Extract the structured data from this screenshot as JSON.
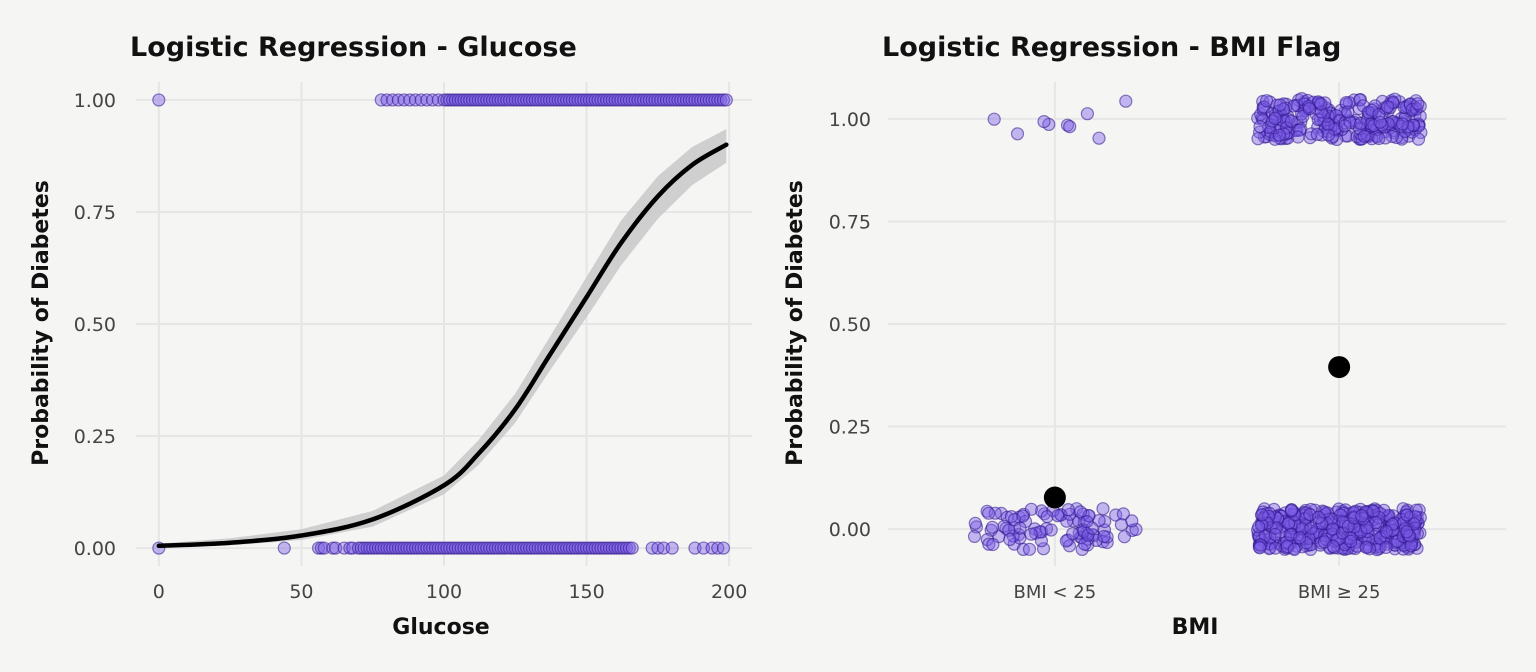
{
  "chart_data": [
    {
      "type": "scatter",
      "title": "Logistic Regression - Glucose",
      "xlabel": "Glucose",
      "ylabel": "Probability of Diabetes",
      "xlim": [
        -8,
        208
      ],
      "ylim": [
        -0.04,
        1.04
      ],
      "xticks": [
        0,
        50,
        100,
        150,
        200
      ],
      "xtick_labels": [
        "0",
        "50",
        "100",
        "150",
        "200"
      ],
      "yticks": [
        0,
        0.25,
        0.5,
        0.75,
        1
      ],
      "ytick_labels": [
        "0.00",
        "0.25",
        "0.50",
        "0.75",
        "1.00"
      ],
      "grid": true,
      "point_color": "#7c5ce6",
      "points_outcome_1": {
        "x": [
          0,
          78,
          80,
          82,
          84,
          86,
          88,
          90,
          92,
          94,
          96,
          98,
          100,
          101,
          102,
          103,
          104,
          105,
          106,
          107,
          108,
          109,
          110,
          111,
          112,
          113,
          114,
          115,
          116,
          117,
          118,
          119,
          120,
          121,
          122,
          123,
          124,
          125,
          126,
          127,
          128,
          129,
          130,
          131,
          132,
          133,
          134,
          135,
          136,
          137,
          138,
          139,
          140,
          141,
          142,
          143,
          144,
          145,
          146,
          147,
          148,
          149,
          150,
          151,
          152,
          153,
          154,
          155,
          156,
          157,
          158,
          159,
          160,
          161,
          162,
          163,
          164,
          165,
          166,
          167,
          168,
          169,
          170,
          171,
          172,
          173,
          174,
          175,
          176,
          177,
          178,
          179,
          180,
          181,
          182,
          183,
          184,
          185,
          186,
          187,
          188,
          189,
          190,
          191,
          192,
          193,
          194,
          195,
          196,
          197,
          198,
          199
        ],
        "y": 1
      },
      "points_outcome_0": {
        "x": [
          0,
          44,
          56,
          57,
          58,
          61,
          62,
          65,
          67,
          68,
          70,
          71,
          72,
          73,
          74,
          75,
          76,
          77,
          78,
          79,
          80,
          81,
          82,
          83,
          84,
          85,
          86,
          87,
          88,
          89,
          90,
          91,
          92,
          93,
          94,
          95,
          96,
          97,
          98,
          99,
          100,
          101,
          102,
          103,
          104,
          105,
          106,
          107,
          108,
          109,
          110,
          111,
          112,
          113,
          114,
          115,
          116,
          117,
          118,
          119,
          120,
          121,
          122,
          123,
          124,
          125,
          126,
          127,
          128,
          129,
          130,
          131,
          132,
          133,
          134,
          135,
          136,
          137,
          138,
          139,
          140,
          141,
          142,
          143,
          144,
          145,
          146,
          147,
          148,
          149,
          150,
          151,
          152,
          153,
          154,
          155,
          156,
          157,
          158,
          159,
          160,
          161,
          162,
          163,
          164,
          165,
          166,
          173,
          175,
          177,
          180,
          188,
          191,
          194,
          196,
          198
        ],
        "y": 0
      },
      "fit_curve": {
        "x": [
          0,
          25,
          50,
          75,
          100,
          112,
          125,
          137,
          150,
          162,
          175,
          187,
          199
        ],
        "y": [
          0.005,
          0.012,
          0.028,
          0.064,
          0.14,
          0.21,
          0.31,
          0.43,
          0.56,
          0.68,
          0.785,
          0.855,
          0.9
        ]
      },
      "fit_ci": {
        "x": [
          0,
          25,
          50,
          75,
          100,
          112,
          125,
          137,
          150,
          162,
          175,
          187,
          199
        ],
        "lower": [
          0.002,
          0.006,
          0.018,
          0.048,
          0.12,
          0.185,
          0.28,
          0.395,
          0.515,
          0.63,
          0.735,
          0.81,
          0.86
        ],
        "upper": [
          0.01,
          0.022,
          0.042,
          0.083,
          0.162,
          0.24,
          0.345,
          0.47,
          0.605,
          0.73,
          0.83,
          0.895,
          0.935
        ]
      }
    },
    {
      "type": "scatter",
      "title": "Logistic Regression - BMI Flag",
      "xlabel": "BMI",
      "ylabel": "Probability of Diabetes",
      "categories": [
        "BMI < 25",
        "BMI ≥ 25"
      ],
      "ylim": [
        -0.09,
        1.09
      ],
      "yticks": [
        0,
        0.25,
        0.5,
        0.75,
        1
      ],
      "ytick_labels": [
        "0.00",
        "0.25",
        "0.50",
        "0.75",
        "1.00"
      ],
      "grid": true,
      "point_color": "#7c5ce6",
      "jitter": {
        "x": 0.32,
        "y": 0.05
      },
      "group_counts": [
        {
          "category": "BMI < 25",
          "outcome_0": 95,
          "outcome_1": 9
        },
        {
          "category": "BMI ≥ 25",
          "outcome_0": 410,
          "outcome_1": 260
        }
      ],
      "predicted_probability": [
        0.077,
        0.395
      ]
    }
  ]
}
